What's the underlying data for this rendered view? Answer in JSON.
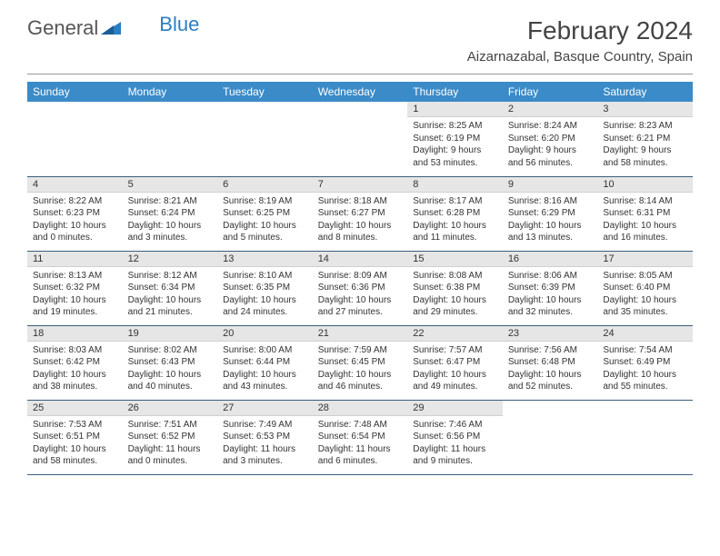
{
  "logo": {
    "text1": "General",
    "text2": "Blue"
  },
  "title": "February 2024",
  "location": "Aizarnazabal, Basque Country, Spain",
  "colors": {
    "header_bg": "#3b8bc8",
    "header_fg": "#ffffff",
    "daynum_bg": "#e6e6e6",
    "border": "#3b5e7a",
    "logo_blue": "#2b7ec2"
  },
  "day_headers": [
    "Sunday",
    "Monday",
    "Tuesday",
    "Wednesday",
    "Thursday",
    "Friday",
    "Saturday"
  ],
  "weeks": [
    [
      null,
      null,
      null,
      null,
      {
        "n": "1",
        "sr": "Sunrise: 8:25 AM",
        "ss": "Sunset: 6:19 PM",
        "dl1": "Daylight: 9 hours",
        "dl2": "and 53 minutes."
      },
      {
        "n": "2",
        "sr": "Sunrise: 8:24 AM",
        "ss": "Sunset: 6:20 PM",
        "dl1": "Daylight: 9 hours",
        "dl2": "and 56 minutes."
      },
      {
        "n": "3",
        "sr": "Sunrise: 8:23 AM",
        "ss": "Sunset: 6:21 PM",
        "dl1": "Daylight: 9 hours",
        "dl2": "and 58 minutes."
      }
    ],
    [
      {
        "n": "4",
        "sr": "Sunrise: 8:22 AM",
        "ss": "Sunset: 6:23 PM",
        "dl1": "Daylight: 10 hours",
        "dl2": "and 0 minutes."
      },
      {
        "n": "5",
        "sr": "Sunrise: 8:21 AM",
        "ss": "Sunset: 6:24 PM",
        "dl1": "Daylight: 10 hours",
        "dl2": "and 3 minutes."
      },
      {
        "n": "6",
        "sr": "Sunrise: 8:19 AM",
        "ss": "Sunset: 6:25 PM",
        "dl1": "Daylight: 10 hours",
        "dl2": "and 5 minutes."
      },
      {
        "n": "7",
        "sr": "Sunrise: 8:18 AM",
        "ss": "Sunset: 6:27 PM",
        "dl1": "Daylight: 10 hours",
        "dl2": "and 8 minutes."
      },
      {
        "n": "8",
        "sr": "Sunrise: 8:17 AM",
        "ss": "Sunset: 6:28 PM",
        "dl1": "Daylight: 10 hours",
        "dl2": "and 11 minutes."
      },
      {
        "n": "9",
        "sr": "Sunrise: 8:16 AM",
        "ss": "Sunset: 6:29 PM",
        "dl1": "Daylight: 10 hours",
        "dl2": "and 13 minutes."
      },
      {
        "n": "10",
        "sr": "Sunrise: 8:14 AM",
        "ss": "Sunset: 6:31 PM",
        "dl1": "Daylight: 10 hours",
        "dl2": "and 16 minutes."
      }
    ],
    [
      {
        "n": "11",
        "sr": "Sunrise: 8:13 AM",
        "ss": "Sunset: 6:32 PM",
        "dl1": "Daylight: 10 hours",
        "dl2": "and 19 minutes."
      },
      {
        "n": "12",
        "sr": "Sunrise: 8:12 AM",
        "ss": "Sunset: 6:34 PM",
        "dl1": "Daylight: 10 hours",
        "dl2": "and 21 minutes."
      },
      {
        "n": "13",
        "sr": "Sunrise: 8:10 AM",
        "ss": "Sunset: 6:35 PM",
        "dl1": "Daylight: 10 hours",
        "dl2": "and 24 minutes."
      },
      {
        "n": "14",
        "sr": "Sunrise: 8:09 AM",
        "ss": "Sunset: 6:36 PM",
        "dl1": "Daylight: 10 hours",
        "dl2": "and 27 minutes."
      },
      {
        "n": "15",
        "sr": "Sunrise: 8:08 AM",
        "ss": "Sunset: 6:38 PM",
        "dl1": "Daylight: 10 hours",
        "dl2": "and 29 minutes."
      },
      {
        "n": "16",
        "sr": "Sunrise: 8:06 AM",
        "ss": "Sunset: 6:39 PM",
        "dl1": "Daylight: 10 hours",
        "dl2": "and 32 minutes."
      },
      {
        "n": "17",
        "sr": "Sunrise: 8:05 AM",
        "ss": "Sunset: 6:40 PM",
        "dl1": "Daylight: 10 hours",
        "dl2": "and 35 minutes."
      }
    ],
    [
      {
        "n": "18",
        "sr": "Sunrise: 8:03 AM",
        "ss": "Sunset: 6:42 PM",
        "dl1": "Daylight: 10 hours",
        "dl2": "and 38 minutes."
      },
      {
        "n": "19",
        "sr": "Sunrise: 8:02 AM",
        "ss": "Sunset: 6:43 PM",
        "dl1": "Daylight: 10 hours",
        "dl2": "and 40 minutes."
      },
      {
        "n": "20",
        "sr": "Sunrise: 8:00 AM",
        "ss": "Sunset: 6:44 PM",
        "dl1": "Daylight: 10 hours",
        "dl2": "and 43 minutes."
      },
      {
        "n": "21",
        "sr": "Sunrise: 7:59 AM",
        "ss": "Sunset: 6:45 PM",
        "dl1": "Daylight: 10 hours",
        "dl2": "and 46 minutes."
      },
      {
        "n": "22",
        "sr": "Sunrise: 7:57 AM",
        "ss": "Sunset: 6:47 PM",
        "dl1": "Daylight: 10 hours",
        "dl2": "and 49 minutes."
      },
      {
        "n": "23",
        "sr": "Sunrise: 7:56 AM",
        "ss": "Sunset: 6:48 PM",
        "dl1": "Daylight: 10 hours",
        "dl2": "and 52 minutes."
      },
      {
        "n": "24",
        "sr": "Sunrise: 7:54 AM",
        "ss": "Sunset: 6:49 PM",
        "dl1": "Daylight: 10 hours",
        "dl2": "and 55 minutes."
      }
    ],
    [
      {
        "n": "25",
        "sr": "Sunrise: 7:53 AM",
        "ss": "Sunset: 6:51 PM",
        "dl1": "Daylight: 10 hours",
        "dl2": "and 58 minutes."
      },
      {
        "n": "26",
        "sr": "Sunrise: 7:51 AM",
        "ss": "Sunset: 6:52 PM",
        "dl1": "Daylight: 11 hours",
        "dl2": "and 0 minutes."
      },
      {
        "n": "27",
        "sr": "Sunrise: 7:49 AM",
        "ss": "Sunset: 6:53 PM",
        "dl1": "Daylight: 11 hours",
        "dl2": "and 3 minutes."
      },
      {
        "n": "28",
        "sr": "Sunrise: 7:48 AM",
        "ss": "Sunset: 6:54 PM",
        "dl1": "Daylight: 11 hours",
        "dl2": "and 6 minutes."
      },
      {
        "n": "29",
        "sr": "Sunrise: 7:46 AM",
        "ss": "Sunset: 6:56 PM",
        "dl1": "Daylight: 11 hours",
        "dl2": "and 9 minutes."
      },
      null,
      null
    ]
  ]
}
